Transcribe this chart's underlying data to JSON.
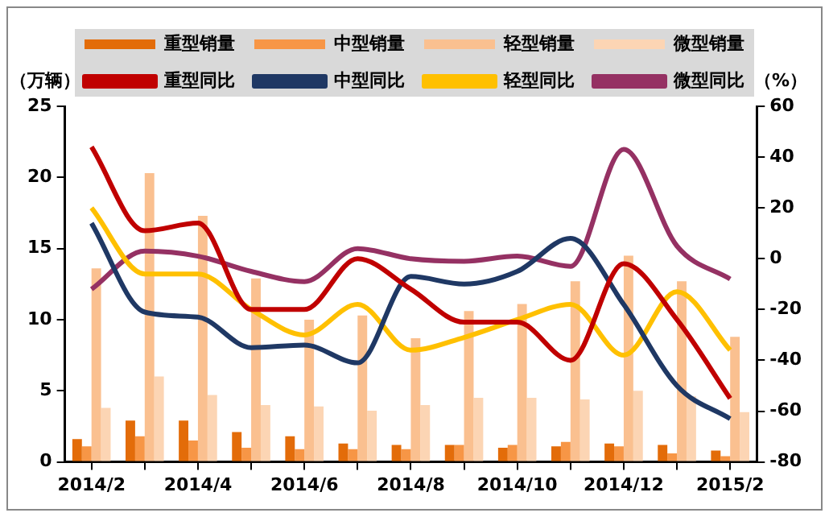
{
  "chart_data": {
    "type": "bar",
    "ylabel": "（万辆）",
    "y2label": "（%）",
    "categories": [
      "2014/2",
      null,
      "2014/4",
      null,
      "2014/6",
      null,
      "2014/8",
      null,
      "2014/10",
      null,
      "2014/12",
      null,
      "2015/2"
    ],
    "series": [
      {
        "name": "重型销量",
        "color": "#e36c09",
        "values": [
          1.6,
          2.9,
          2.9,
          2.1,
          1.8,
          1.3,
          1.2,
          1.2,
          1.0,
          1.1,
          1.3,
          1.2,
          0.8
        ]
      },
      {
        "name": "中型销量",
        "color": "#f79646",
        "values": [
          1.1,
          1.8,
          1.5,
          1.0,
          0.9,
          0.9,
          0.9,
          1.2,
          1.2,
          1.4,
          1.1,
          0.6,
          0.4
        ]
      },
      {
        "name": "轻型销量",
        "color": "#fac090",
        "values": [
          13.6,
          20.3,
          17.3,
          12.9,
          10.0,
          10.3,
          8.7,
          10.6,
          11.1,
          12.7,
          14.5,
          12.7,
          8.8
        ]
      },
      {
        "name": "微型销量",
        "color": "#fcd5b4",
        "values": [
          3.8,
          6.0,
          4.7,
          4.0,
          3.9,
          3.6,
          4.0,
          4.5,
          4.5,
          4.4,
          5.0,
          4.6,
          3.5
        ]
      },
      {
        "name": "重型同比",
        "type": "line",
        "axis": "y2",
        "color": "#c00000",
        "values": [
          44,
          11,
          14,
          -20,
          -20,
          0,
          -12,
          -25,
          -25,
          -40,
          -2,
          -24,
          -55
        ]
      },
      {
        "name": "中型同比",
        "type": "line",
        "axis": "y2",
        "color": "#1f3864",
        "values": [
          14,
          -21,
          -23,
          -35,
          -34,
          -41,
          -7,
          -10,
          -5,
          8,
          -18,
          -50,
          -63
        ]
      },
      {
        "name": "轻型同比",
        "type": "line",
        "axis": "y2",
        "color": "#ffc000",
        "values": [
          20,
          -6,
          -6,
          -20,
          -30,
          -18,
          -36,
          -31,
          -24,
          -18,
          -38,
          -13,
          -36
        ]
      },
      {
        "name": "微型同比",
        "type": "line",
        "axis": "y2",
        "color": "#953163",
        "values": [
          -12,
          3,
          1,
          -5,
          -9,
          4,
          0,
          -1,
          1,
          -3,
          43,
          5,
          -8
        ]
      }
    ],
    "ylim": [
      0,
      25
    ],
    "yticks": [
      0,
      5,
      10,
      15,
      20,
      25
    ],
    "y2lim": [
      -80,
      60
    ],
    "y2ticks": [
      -80,
      -60,
      -40,
      -20,
      0,
      20,
      40,
      60
    ],
    "grid": false,
    "legend": "top",
    "marker": "none",
    "line_style": "solid"
  }
}
